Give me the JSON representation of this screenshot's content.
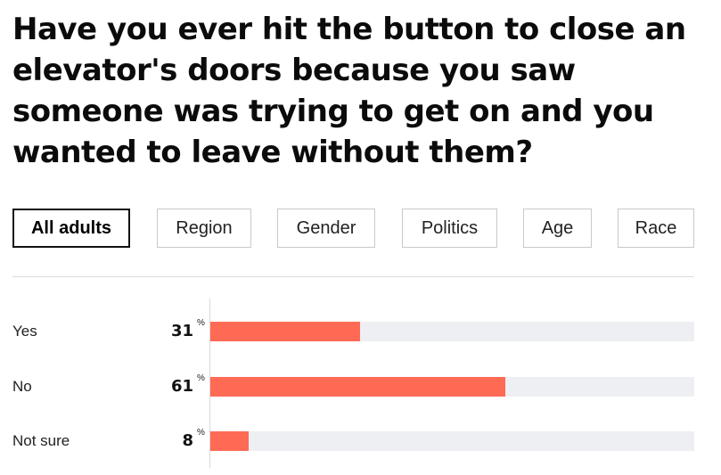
{
  "question": "Have you ever hit the button to close an elevator's doors because you saw someone was trying to get on and you wanted to leave without them?",
  "tabs": [
    {
      "label": "All adults",
      "active": true
    },
    {
      "label": "Region",
      "active": false
    },
    {
      "label": "Gender",
      "active": false
    },
    {
      "label": "Politics",
      "active": false
    },
    {
      "label": "Age",
      "active": false
    },
    {
      "label": "Race",
      "active": false
    }
  ],
  "colors": {
    "bar": "#ff6a55",
    "track": "#eeeff2"
  },
  "chart_data": {
    "type": "bar",
    "orientation": "horizontal",
    "title": "",
    "categories": [
      "Yes",
      "No",
      "Not sure"
    ],
    "values": [
      31,
      61,
      8
    ],
    "value_labels": [
      "31",
      "61",
      "8"
    ],
    "unit": "%",
    "xlim": [
      0,
      100
    ],
    "grid": false
  }
}
